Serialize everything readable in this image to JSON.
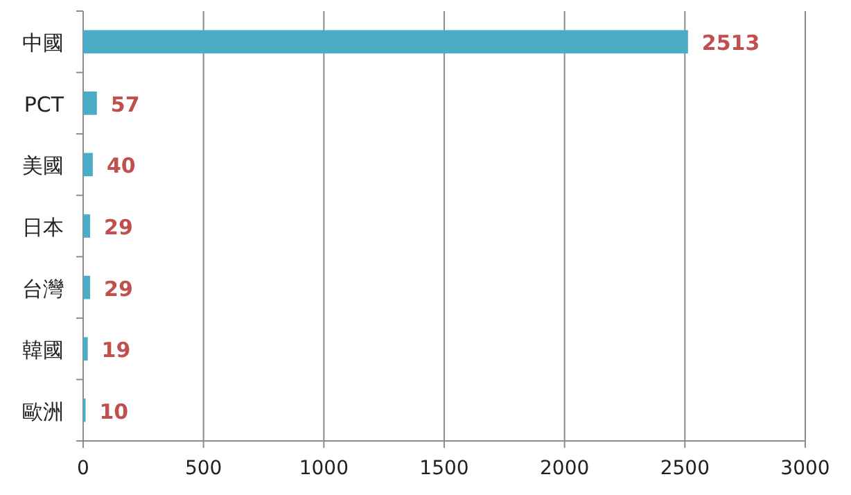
{
  "chart_data": {
    "type": "bar",
    "orientation": "horizontal",
    "categories": [
      "中國",
      "PCT",
      "美國",
      "日本",
      "台灣",
      "韓國",
      "歐洲"
    ],
    "values": [
      2513,
      57,
      40,
      29,
      29,
      19,
      10
    ],
    "color": "#4bacc6",
    "xlim": [
      0,
      3000
    ],
    "xticks": [
      0,
      500,
      1000,
      1500,
      2000,
      2500,
      3000
    ],
    "grid": "x",
    "data_labels": true
  }
}
